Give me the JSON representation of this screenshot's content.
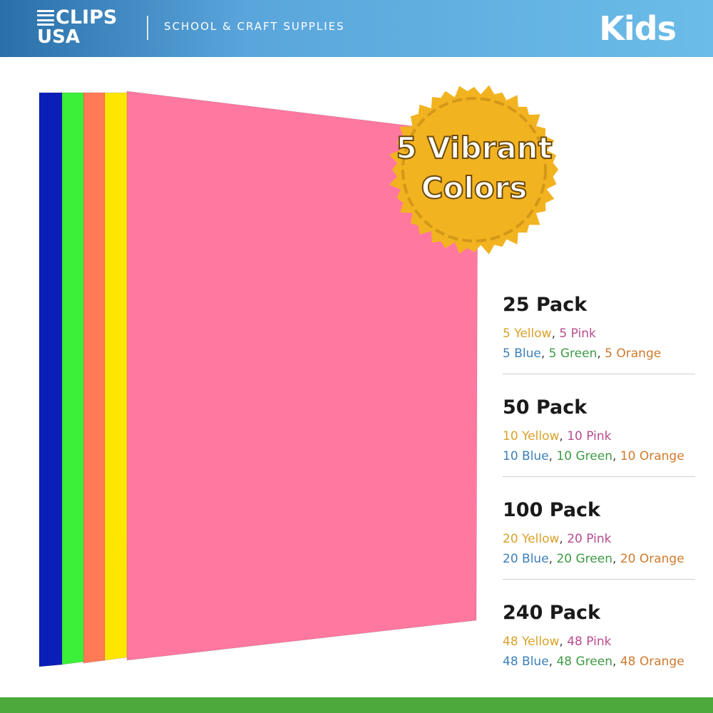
{
  "header": {
    "logo_line1": "CLIPS",
    "logo_line2": "USA",
    "tagline": "SCHOOL & CRAFT SUPPLIES",
    "kids_label": "Kids"
  },
  "badge": {
    "line1": "5 Vibrant",
    "line2": "Colors",
    "color": "#f2b320"
  },
  "paper_colors": [
    "#0a1fb8",
    "#3cf03a",
    "#ff7a55",
    "#ffe600",
    "#ff78a0"
  ],
  "colors": {
    "header_blue": "#5aa6dc",
    "footer_green": "#4da93b",
    "yellow_text": "#d9a12a",
    "pink_text": "#b84c8e",
    "blue_text": "#3b7fb8",
    "green_text": "#3f9a45",
    "orange_text": "#d07a2c"
  },
  "packs": [
    {
      "title": "25 Pack",
      "yellow": "5 Yellow",
      "pink": "5 Pink",
      "blue": "5 Blue",
      "green": "5 Green",
      "orange": "5 Orange"
    },
    {
      "title": "50 Pack",
      "yellow": "10 Yellow",
      "pink": "10 Pink",
      "blue": "10 Blue",
      "green": "10 Green",
      "orange": "10 Orange"
    },
    {
      "title": "100 Pack",
      "yellow": "20 Yellow",
      "pink": "20 Pink",
      "blue": "20 Blue",
      "green": "20 Green",
      "orange": "20 Orange"
    },
    {
      "title": "240 Pack",
      "yellow": "48 Yellow",
      "pink": "48 Pink",
      "blue": "48 Blue",
      "green": "48 Green",
      "orange": "48 Orange"
    }
  ],
  "separator": ", "
}
